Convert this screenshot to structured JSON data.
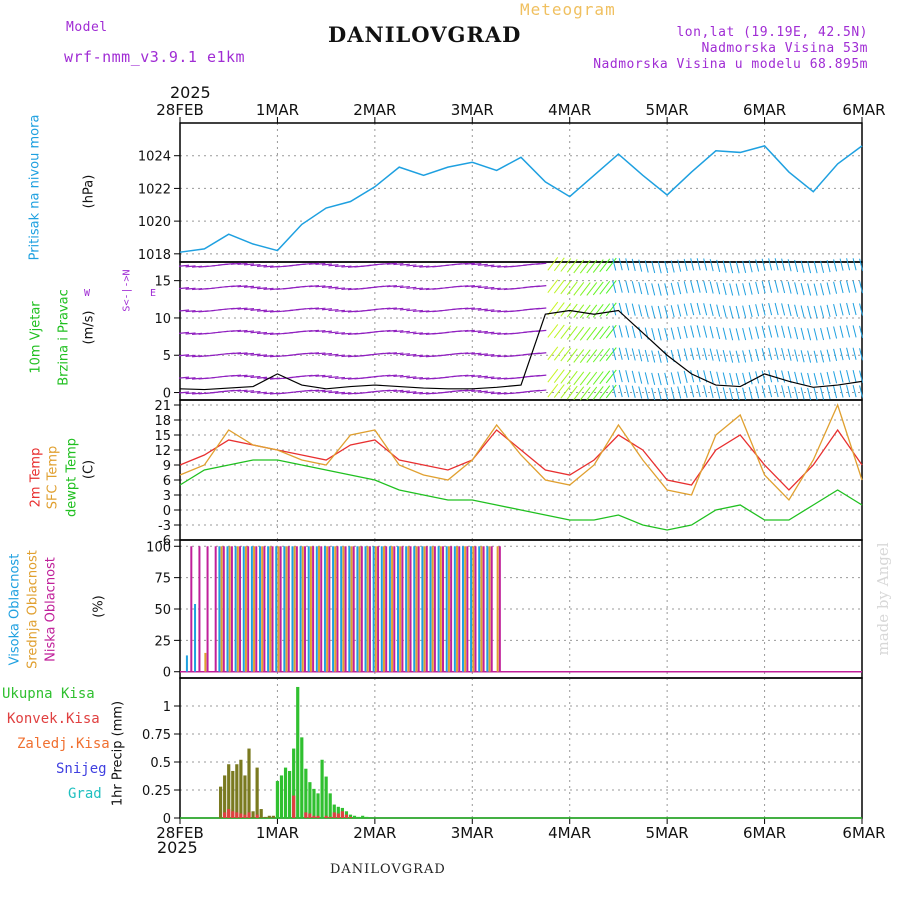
{
  "header": {
    "model_label": "Model",
    "model_name": "wrf-nmm_v3.9.1 e1km",
    "title": "DANILOVGRAD",
    "meteogram": "Meteogram",
    "lonlat": "lon,lat (19.19E, 42.5N)",
    "altitude": "Nadmorska Visina 53m",
    "model_altitude": "Nadmorska Visina u modelu 68.895m",
    "year_top": "2025",
    "year_bottom": "2025",
    "footer": "DANILOVGRAD",
    "made_by": "made by Angel"
  },
  "axis_labels": {
    "pressure": "Pritisak na nivou mora",
    "pressure_unit": "(hPa)",
    "wind1": "10m Vjetar",
    "wind2": "Brzina i Pravac",
    "wind_unit": "(m/s)",
    "compass": "S<-|->N",
    "compass_w": "W",
    "compass_e": "E",
    "temp1": "2m Temp",
    "temp2": "SFC Temp",
    "temp3": "dewpt Temp",
    "temp_unit": "(C)",
    "cloud1": "Visoka Oblacnost",
    "cloud2": "Srednja Oblacnost",
    "cloud3": "Niska Oblacnost",
    "cloud_unit": "(%)",
    "precip_unit": "1hr Precip (mm)",
    "precip_legend": [
      "Ukupna Kisa",
      "Konvek.Kisa",
      "Zaledj.Kisa",
      "Snijeg",
      "Grad"
    ]
  },
  "colors": {
    "pressure": "#1ea0e0",
    "temp2m": "#e83030",
    "sfc": "#e0a030",
    "dew": "#20c020",
    "high_cloud": "#1ea0e0",
    "mid_cloud": "#e0a030",
    "low_cloud": "#c0209a",
    "total_rain": "#30c030",
    "conv_rain": "#e04040",
    "frz_rain": "#f07030",
    "snow": "#4040e0",
    "hail": "#20c0c0",
    "wind_purple": "#9020c0"
  },
  "chart_data": [
    {
      "type": "line",
      "panel": "pressure",
      "x": [
        0,
        6,
        12,
        18,
        24,
        30,
        36,
        42,
        48,
        54,
        60,
        66,
        72,
        78,
        84,
        90,
        96,
        102,
        108,
        114,
        120,
        126,
        132,
        138,
        144,
        150,
        156,
        162,
        168
      ],
      "y": [
        1018.1,
        1018.3,
        1019.2,
        1018.6,
        1018.2,
        1019.8,
        1020.8,
        1021.2,
        1022.1,
        1023.3,
        1022.8,
        1023.3,
        1023.6,
        1023.1,
        1023.9,
        1022.4,
        1021.5,
        1022.8,
        1024.1,
        1022.8,
        1021.6,
        1023.0,
        1024.3,
        1024.2,
        1024.6,
        1023.0,
        1021.8,
        1023.5,
        1024.6
      ],
      "ylim": [
        1017.5,
        1026
      ],
      "yticks": [
        1018,
        1020,
        1022,
        1024
      ]
    },
    {
      "type": "line",
      "panel": "wind",
      "x": [
        0,
        6,
        12,
        18,
        24,
        30,
        36,
        42,
        48,
        54,
        60,
        66,
        72,
        78,
        84,
        90,
        96,
        102,
        108,
        114,
        120,
        126,
        132,
        138,
        144,
        150,
        156,
        162,
        168
      ],
      "speed": [
        0.5,
        0.4,
        0.6,
        0.8,
        2.5,
        1.0,
        0.5,
        0.8,
        1.0,
        0.8,
        0.6,
        0.5,
        0.5,
        0.7,
        1.0,
        10.5,
        11.0,
        10.5,
        11.0,
        8.0,
        5.0,
        2.5,
        1.0,
        0.8,
        2.5,
        1.5,
        0.7,
        1.0,
        1.5
      ],
      "ylim": [
        -1,
        17.5
      ],
      "yticks": [
        0,
        5,
        10,
        15
      ]
    },
    {
      "type": "line",
      "panel": "temperature",
      "x": [
        0,
        6,
        12,
        18,
        24,
        30,
        36,
        42,
        48,
        54,
        60,
        66,
        72,
        78,
        84,
        90,
        96,
        102,
        108,
        114,
        120,
        126,
        132,
        138,
        144,
        150,
        156,
        162,
        168
      ],
      "series": [
        {
          "name": "2m Temp",
          "values": [
            9,
            11,
            14,
            13,
            12,
            11,
            10,
            13,
            14,
            10,
            9,
            8,
            10,
            16,
            12,
            8,
            7,
            10,
            15,
            12,
            6,
            5,
            12,
            15,
            9,
            4,
            9,
            16,
            9
          ]
        },
        {
          "name": "SFC Temp",
          "values": [
            7,
            9,
            16,
            13,
            12,
            10,
            9,
            15,
            16,
            9,
            7,
            6,
            10,
            17,
            11,
            6,
            5,
            9,
            17,
            10,
            4,
            3,
            15,
            19,
            7,
            2,
            10,
            21,
            6
          ]
        },
        {
          "name": "dewpt Temp",
          "values": [
            5,
            8,
            9,
            10,
            10,
            9,
            8,
            7,
            6,
            4,
            3,
            2,
            2,
            1,
            0,
            -1,
            -2,
            -2,
            -1,
            -3,
            -4,
            -3,
            0,
            1,
            -2,
            -2,
            1,
            4,
            1
          ]
        }
      ],
      "ylim": [
        -6,
        22
      ],
      "yticks": [
        -6,
        -3,
        0,
        3,
        6,
        9,
        12,
        15,
        18,
        21
      ]
    },
    {
      "type": "bar",
      "panel": "cloud",
      "x": [
        2,
        4,
        6,
        8,
        10,
        12,
        14,
        16,
        18,
        20,
        22,
        24,
        26,
        28,
        30,
        32,
        34,
        36,
        38,
        40,
        42,
        44,
        46,
        48,
        50,
        52,
        54,
        56,
        58,
        60,
        62,
        64,
        66,
        68,
        70,
        72,
        74,
        76,
        78
      ],
      "series": [
        {
          "name": "Visoka Oblacnost",
          "values": [
            13,
            54,
            0,
            0,
            100,
            100,
            100,
            100,
            100,
            100,
            100,
            100,
            100,
            100,
            100,
            100,
            100,
            100,
            100,
            100,
            100,
            100,
            100,
            100,
            100,
            100,
            100,
            100,
            100,
            100,
            100,
            100,
            100,
            100,
            100,
            100,
            100,
            100,
            0
          ]
        },
        {
          "name": "Srednja Oblacnost",
          "values": [
            0,
            0,
            15,
            0,
            100,
            100,
            100,
            100,
            100,
            100,
            100,
            100,
            100,
            100,
            100,
            100,
            100,
            100,
            100,
            100,
            100,
            100,
            100,
            100,
            100,
            100,
            100,
            100,
            100,
            100,
            100,
            100,
            100,
            100,
            100,
            100,
            100,
            100,
            100
          ]
        },
        {
          "name": "Niska Oblacnost",
          "values": [
            100,
            100,
            100,
            100,
            100,
            100,
            100,
            100,
            100,
            100,
            100,
            100,
            100,
            100,
            100,
            100,
            100,
            100,
            100,
            100,
            100,
            100,
            100,
            100,
            100,
            100,
            100,
            100,
            100,
            100,
            100,
            100,
            100,
            100,
            100,
            100,
            100,
            100,
            100
          ]
        }
      ],
      "ylim": [
        -5,
        105
      ],
      "yticks": [
        0,
        25,
        50,
        75,
        100
      ]
    },
    {
      "type": "bar",
      "panel": "precip",
      "x": [
        10,
        11,
        12,
        13,
        14,
        15,
        16,
        17,
        18,
        19,
        20,
        21,
        22,
        23,
        24,
        25,
        26,
        27,
        28,
        29,
        30,
        31,
        32,
        33,
        34,
        35,
        36,
        37,
        38,
        39,
        40,
        41,
        42,
        43,
        44,
        45,
        46,
        47,
        48,
        49,
        50,
        51,
        52,
        53
      ],
      "series": [
        {
          "name": "Ukupna Kisa",
          "values": [
            0.28,
            0.38,
            0.48,
            0.42,
            0.48,
            0.52,
            0.38,
            0.62,
            0.06,
            0.45,
            0.08,
            0.01,
            0.02,
            0.02,
            0.33,
            0.38,
            0.45,
            0.42,
            0.62,
            1.17,
            0.72,
            0.44,
            0.32,
            0.26,
            0.22,
            0.52,
            0.37,
            0.22,
            0.12,
            0.1,
            0.09,
            0.06,
            0.03,
            0.02,
            0.01,
            0.02,
            0.01,
            0,
            0,
            0,
            0,
            0,
            0,
            0
          ]
        },
        {
          "name": "Konvek.Kisa",
          "values": [
            0,
            0.05,
            0.08,
            0.06,
            0.05,
            0.04,
            0.03,
            0.05,
            0,
            0.03,
            0,
            0,
            0,
            0,
            0,
            0,
            0,
            0,
            0.2,
            0,
            0,
            0.05,
            0.04,
            0.02,
            0.02,
            0,
            0.02,
            0.01,
            0.05,
            0.04,
            0.06,
            0.03,
            0.01,
            0,
            0,
            0,
            0,
            0,
            0,
            0,
            0,
            0,
            0,
            0
          ]
        }
      ],
      "ylim": [
        0,
        1.25
      ],
      "yticks": [
        0,
        0.25,
        0.5,
        0.75,
        1
      ]
    }
  ],
  "x_axis": {
    "ticks": [
      0,
      24,
      48,
      72,
      96,
      120,
      144,
      168
    ],
    "labels_top": [
      "28FEB",
      "1MAR",
      "2MAR",
      "3MAR",
      "4MAR",
      "5MAR",
      "6MAR"
    ],
    "labels_bottom": [
      "28FEB",
      "1MAR",
      "2MAR",
      "3MAR",
      "4MAR",
      "5MAR",
      "6MAR"
    ]
  }
}
